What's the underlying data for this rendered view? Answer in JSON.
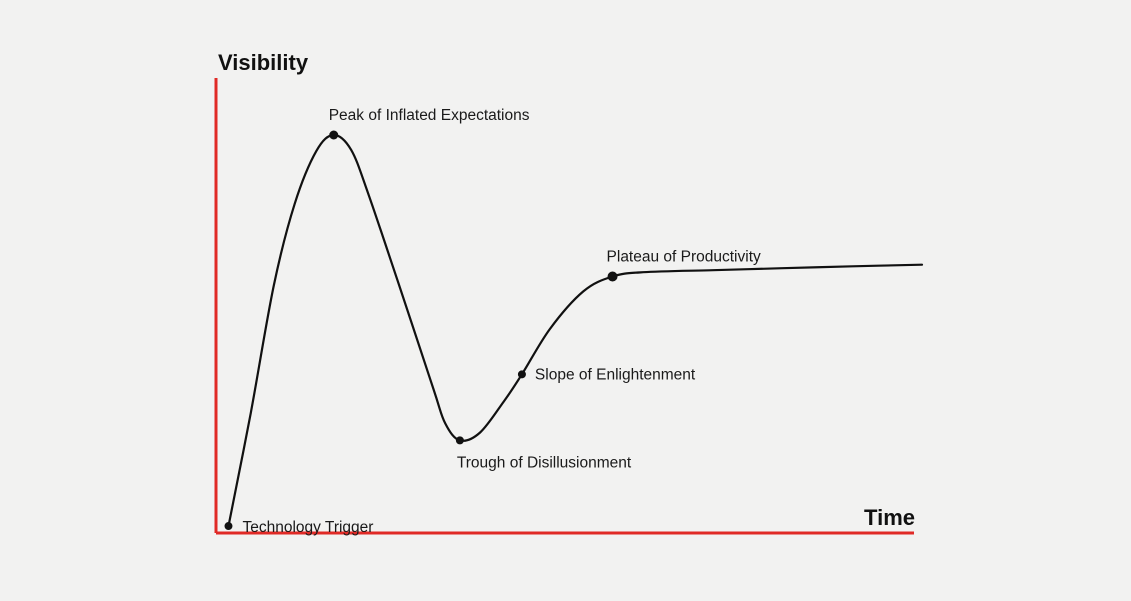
{
  "chart_data": {
    "type": "line",
    "xlabel": "Time",
    "ylabel": "Visibility",
    "points": [
      {
        "name": "Technology Trigger",
        "x": 0.5,
        "y": 0.5
      },
      {
        "name": "Peak of Inflated Expectations",
        "x": 15.6,
        "y": 100
      },
      {
        "name": "Trough of Disillusionment",
        "x": 33.7,
        "y": 22.3
      },
      {
        "name": "Slope of Enlightenment",
        "x": 42.6,
        "y": 39.1
      },
      {
        "name": "Plateau of Productivity",
        "x": 55.6,
        "y": 64
      }
    ],
    "curve": [
      {
        "x": 0.5,
        "y": 0.5
      },
      {
        "x": 3.7,
        "y": 29.3
      },
      {
        "x": 7.0,
        "y": 61.7
      },
      {
        "x": 10.0,
        "y": 82.5
      },
      {
        "x": 13.1,
        "y": 95.9
      },
      {
        "x": 15.6,
        "y": 100
      },
      {
        "x": 18.1,
        "y": 96.2
      },
      {
        "x": 20.6,
        "y": 84.8
      },
      {
        "x": 24.9,
        "y": 62.2
      },
      {
        "x": 29.9,
        "y": 35.4
      },
      {
        "x": 31.6,
        "y": 26.6
      },
      {
        "x": 33.7,
        "y": 22.3
      },
      {
        "x": 36.6,
        "y": 24.3
      },
      {
        "x": 40.0,
        "y": 32.2
      },
      {
        "x": 42.6,
        "y": 39.1
      },
      {
        "x": 46.6,
        "y": 50.6
      },
      {
        "x": 51.4,
        "y": 60.2
      },
      {
        "x": 55.6,
        "y": 64
      },
      {
        "x": 60.0,
        "y": 65.1
      },
      {
        "x": 70.0,
        "y": 65.6
      },
      {
        "x": 80.0,
        "y": 66.1
      },
      {
        "x": 90.0,
        "y": 66.6
      },
      {
        "x": 100.0,
        "y": 67
      }
    ],
    "xlim": [
      0,
      100
    ],
    "ylim": [
      0,
      100
    ],
    "grid": false,
    "colors": {
      "axes": "#e02a26",
      "curve": "#111111",
      "text": "#1a1a1a"
    }
  }
}
